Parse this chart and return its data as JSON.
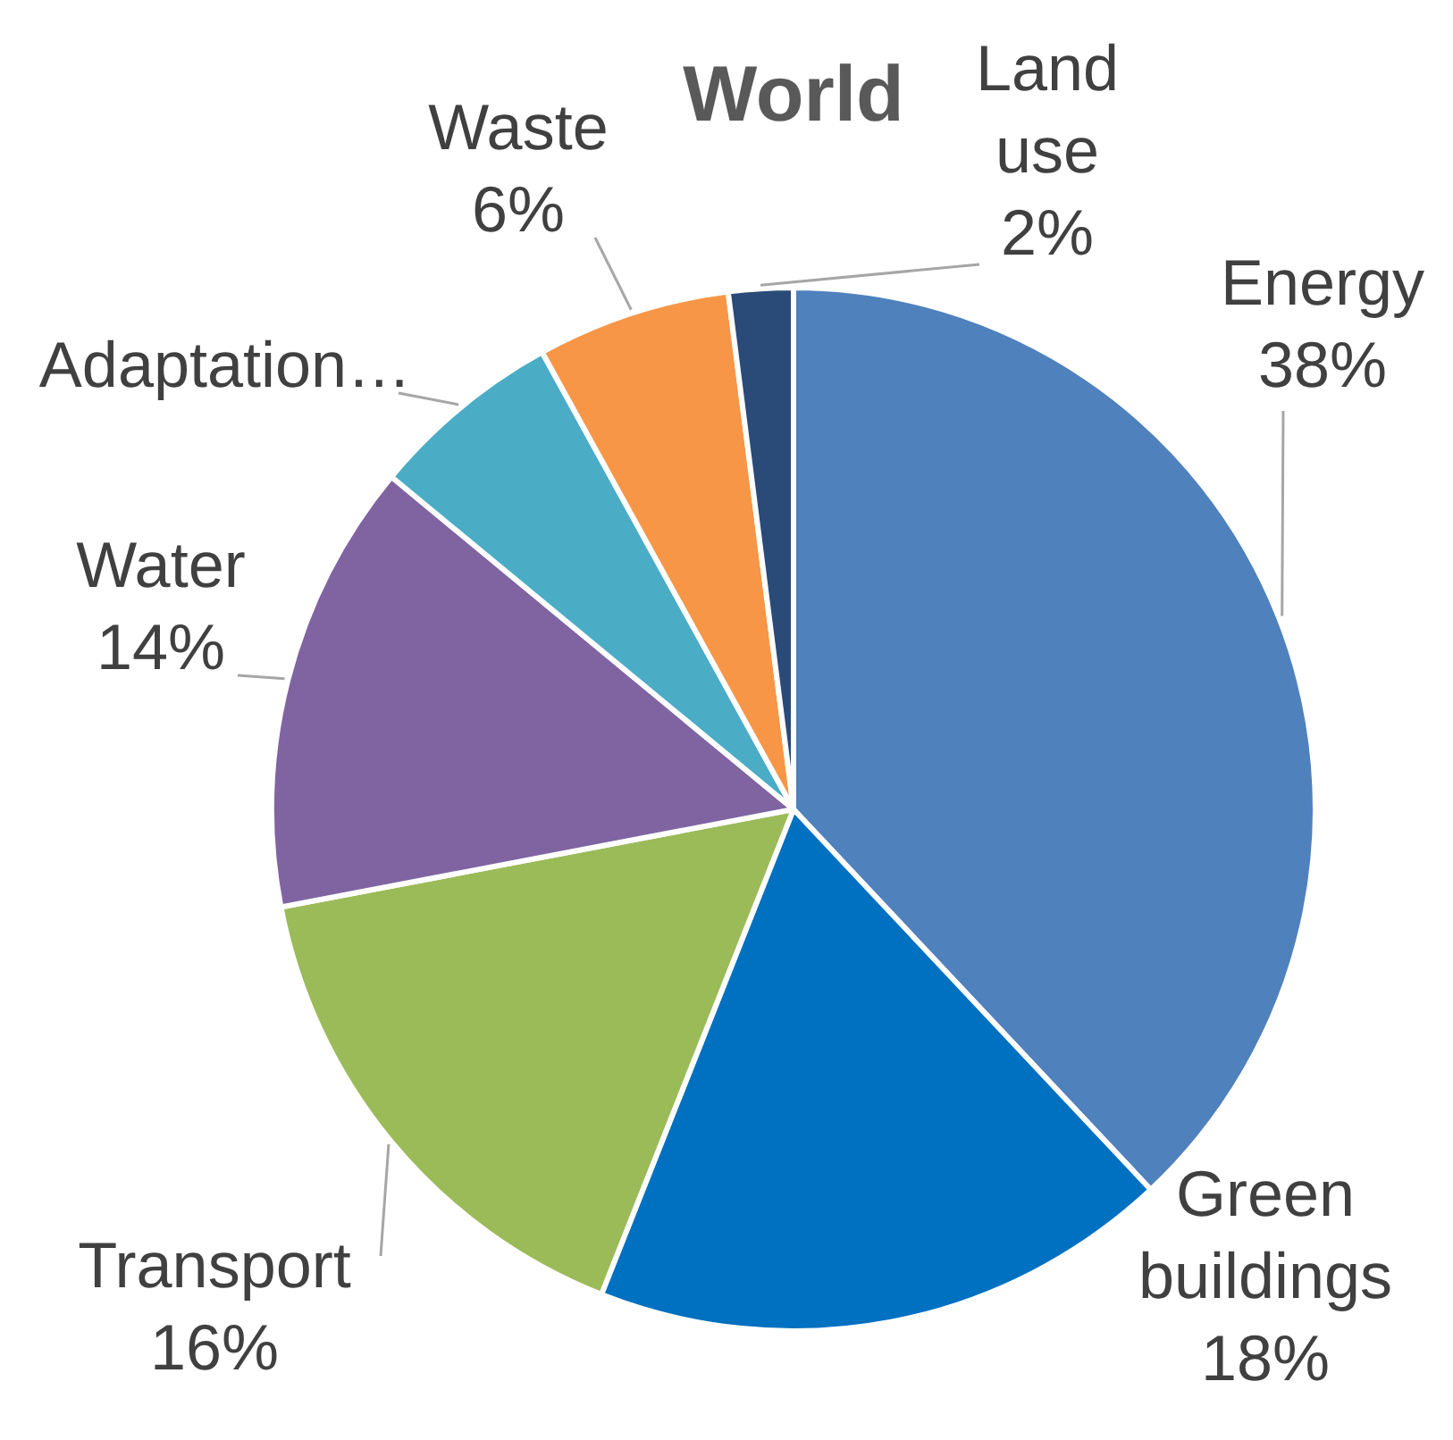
{
  "chart_data": {
    "type": "pie",
    "title": "World",
    "categories": [
      "Energy",
      "Green buildings",
      "Transport",
      "Water",
      "Adaptation…",
      "Waste",
      "Land use"
    ],
    "values": [
      38,
      18,
      16,
      14,
      6,
      6,
      2
    ],
    "value_labels": [
      "38%",
      "18%",
      "16%",
      "14%",
      null,
      "6%",
      "2%"
    ],
    "colors": [
      "#4f81bd",
      "#0070c0",
      "#9bbb59",
      "#8064a2",
      "#4bacc6",
      "#f79646",
      "#2a4a78"
    ]
  }
}
